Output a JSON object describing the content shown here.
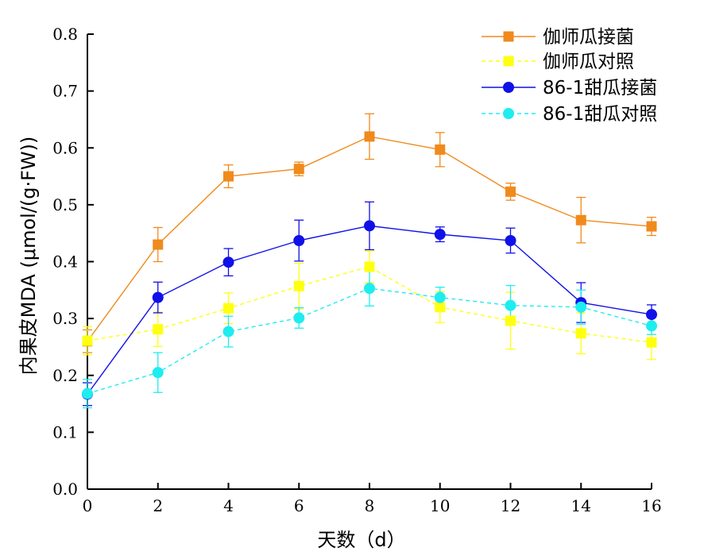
{
  "chart_data": {
    "type": "line",
    "xlabel": "天数（d）",
    "ylabel": "内果皮MDA (μmol/(g·FW))",
    "x": [
      0,
      2,
      4,
      6,
      8,
      10,
      12,
      14,
      16
    ],
    "xlim": [
      0,
      16
    ],
    "ylim": [
      0,
      0.8
    ],
    "xticks": [
      "0",
      "2",
      "4",
      "6",
      "8",
      "10",
      "12",
      "14",
      "16"
    ],
    "yticks": [
      "0.0",
      "0.1",
      "0.2",
      "0.3",
      "0.4",
      "0.5",
      "0.6",
      "0.7",
      "0.8"
    ],
    "grid": false,
    "legend_position": "top-right",
    "series": [
      {
        "name": "伽师瓜接菌",
        "color": "#F08A1C",
        "marker": "square",
        "line_style": "solid",
        "values": [
          0.26,
          0.43,
          0.55,
          0.563,
          0.62,
          0.597,
          0.523,
          0.473,
          0.462
        ],
        "errors": [
          0.02,
          0.03,
          0.02,
          0.012,
          0.04,
          0.03,
          0.015,
          0.04,
          0.016
        ]
      },
      {
        "name": "伽师瓜对照",
        "color": "#FFFF10",
        "marker": "square",
        "line_style": "dashed",
        "values": [
          0.261,
          0.281,
          0.318,
          0.357,
          0.391,
          0.32,
          0.296,
          0.274,
          0.258
        ],
        "errors": [
          0.025,
          0.03,
          0.027,
          0.04,
          0.028,
          0.027,
          0.05,
          0.036,
          0.03
        ]
      },
      {
        "name": "86-1甜瓜接菌",
        "color": "#1010E8",
        "marker": "circle",
        "line_style": "solid",
        "values": [
          0.167,
          0.337,
          0.399,
          0.437,
          0.463,
          0.448,
          0.437,
          0.328,
          0.307
        ],
        "errors": [
          0.02,
          0.027,
          0.024,
          0.036,
          0.042,
          0.013,
          0.022,
          0.035,
          0.017
        ]
      },
      {
        "name": "86-1甜瓜对照",
        "color": "#1EEDF0",
        "marker": "circle",
        "line_style": "dashed",
        "values": [
          0.168,
          0.205,
          0.277,
          0.301,
          0.353,
          0.337,
          0.323,
          0.32,
          0.287
        ],
        "errors": [
          0.025,
          0.035,
          0.027,
          0.018,
          0.031,
          0.018,
          0.035,
          0.03,
          0.015
        ]
      }
    ]
  }
}
